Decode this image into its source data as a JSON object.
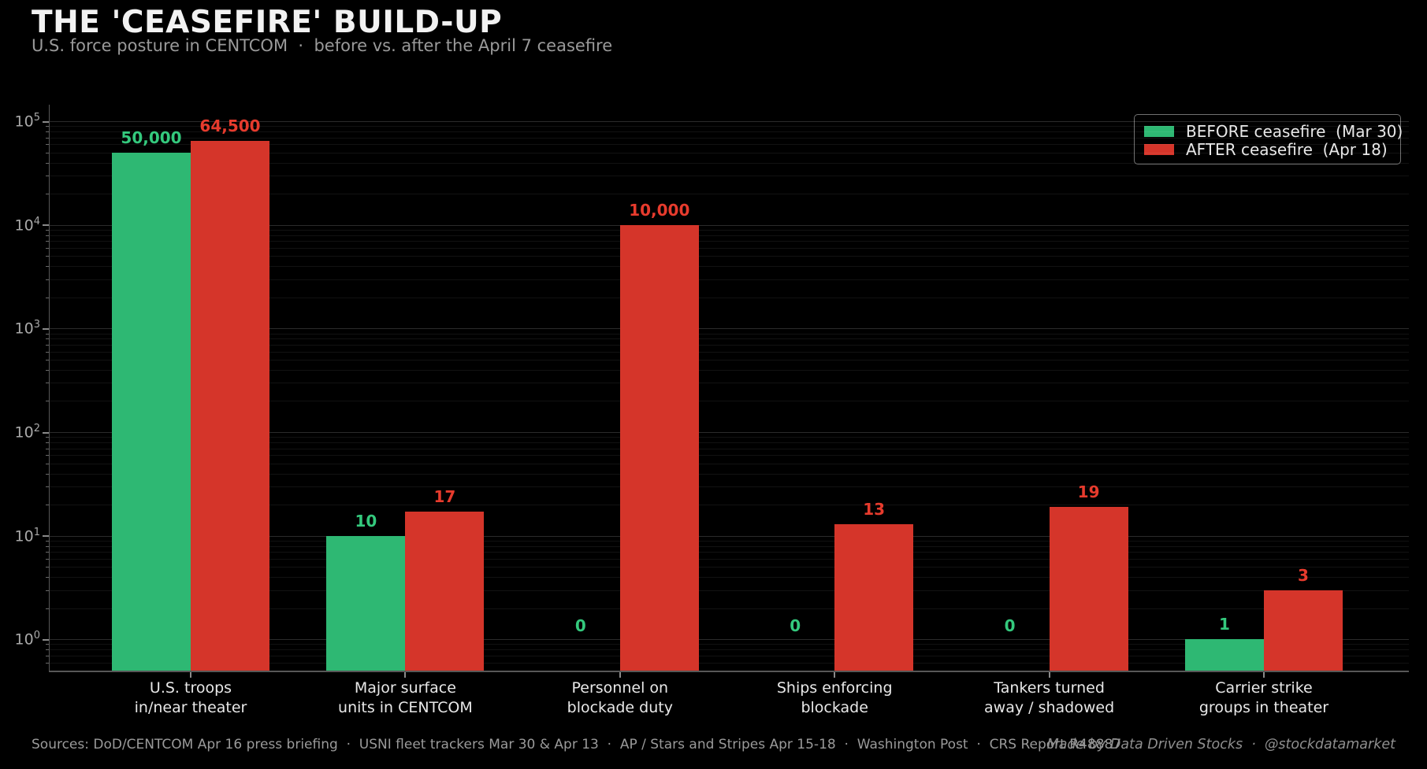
{
  "title": "THE 'CEASEFIRE' BUILD-UP",
  "subtitle": "U.S. force posture in CENTCOM  ·  before vs. after the April 7 ceasefire",
  "legend": {
    "items": [
      {
        "label": "BEFORE ceasefire  (Mar 30)",
        "color_key": "before"
      },
      {
        "label": "AFTER ceasefire  (Apr 18)",
        "color_key": "after"
      }
    ]
  },
  "footer": {
    "sources": "Sources: DoD/CENTCOM Apr 16 press briefing  ·  USNI fleet trackers Mar 30 & Apr 13  ·  AP / Stars and Stripes Apr 15-18  ·  Washington Post  ·  CRS Report R48887",
    "credit": "Made by Data Driven Stocks  ·  @stockdatamarket"
  },
  "colors": {
    "background": "#000000",
    "before": "#2eb873",
    "after": "#d5352a",
    "before_label": "#34c97d",
    "after_label": "#e73b2d",
    "title": "#f2f2f2",
    "subtitle": "#9a9a9a",
    "axis_text": "#a8a8a8"
  },
  "chart_data": {
    "type": "bar",
    "yscale": "log",
    "title": "THE 'CEASEFIRE' BUILD-UP",
    "subtitle": "U.S. force posture in CENTCOM  ·  before vs. after the April 7 ceasefire",
    "categories": [
      [
        "U.S. troops",
        "in/near theater"
      ],
      [
        "Major surface",
        "units in CENTCOM"
      ],
      [
        "Personnel on",
        "blockade duty"
      ],
      [
        "Ships enforcing",
        "blockade"
      ],
      [
        "Tankers turned",
        "away / shadowed"
      ],
      [
        "Carrier strike",
        "groups in theater"
      ]
    ],
    "series": [
      {
        "name": "BEFORE ceasefire  (Mar 30)",
        "values": [
          50000,
          10,
          0,
          0,
          0,
          1
        ]
      },
      {
        "name": "AFTER ceasefire  (Apr 18)",
        "values": [
          64500,
          17,
          10000,
          13,
          19,
          3
        ]
      }
    ],
    "value_labels": [
      [
        "50,000",
        "10",
        "0",
        "0",
        "0",
        "1"
      ],
      [
        "64,500",
        "17",
        "10,000",
        "13",
        "19",
        "3"
      ]
    ],
    "ylim": [
      0.5,
      145000
    ],
    "ytick_exponents": [
      0,
      1,
      2,
      3,
      4,
      5
    ],
    "ytick_base": "10",
    "grid": "horizontal, major and minor log gridlines",
    "legend_position": "upper right",
    "xlabel": "",
    "ylabel": ""
  }
}
